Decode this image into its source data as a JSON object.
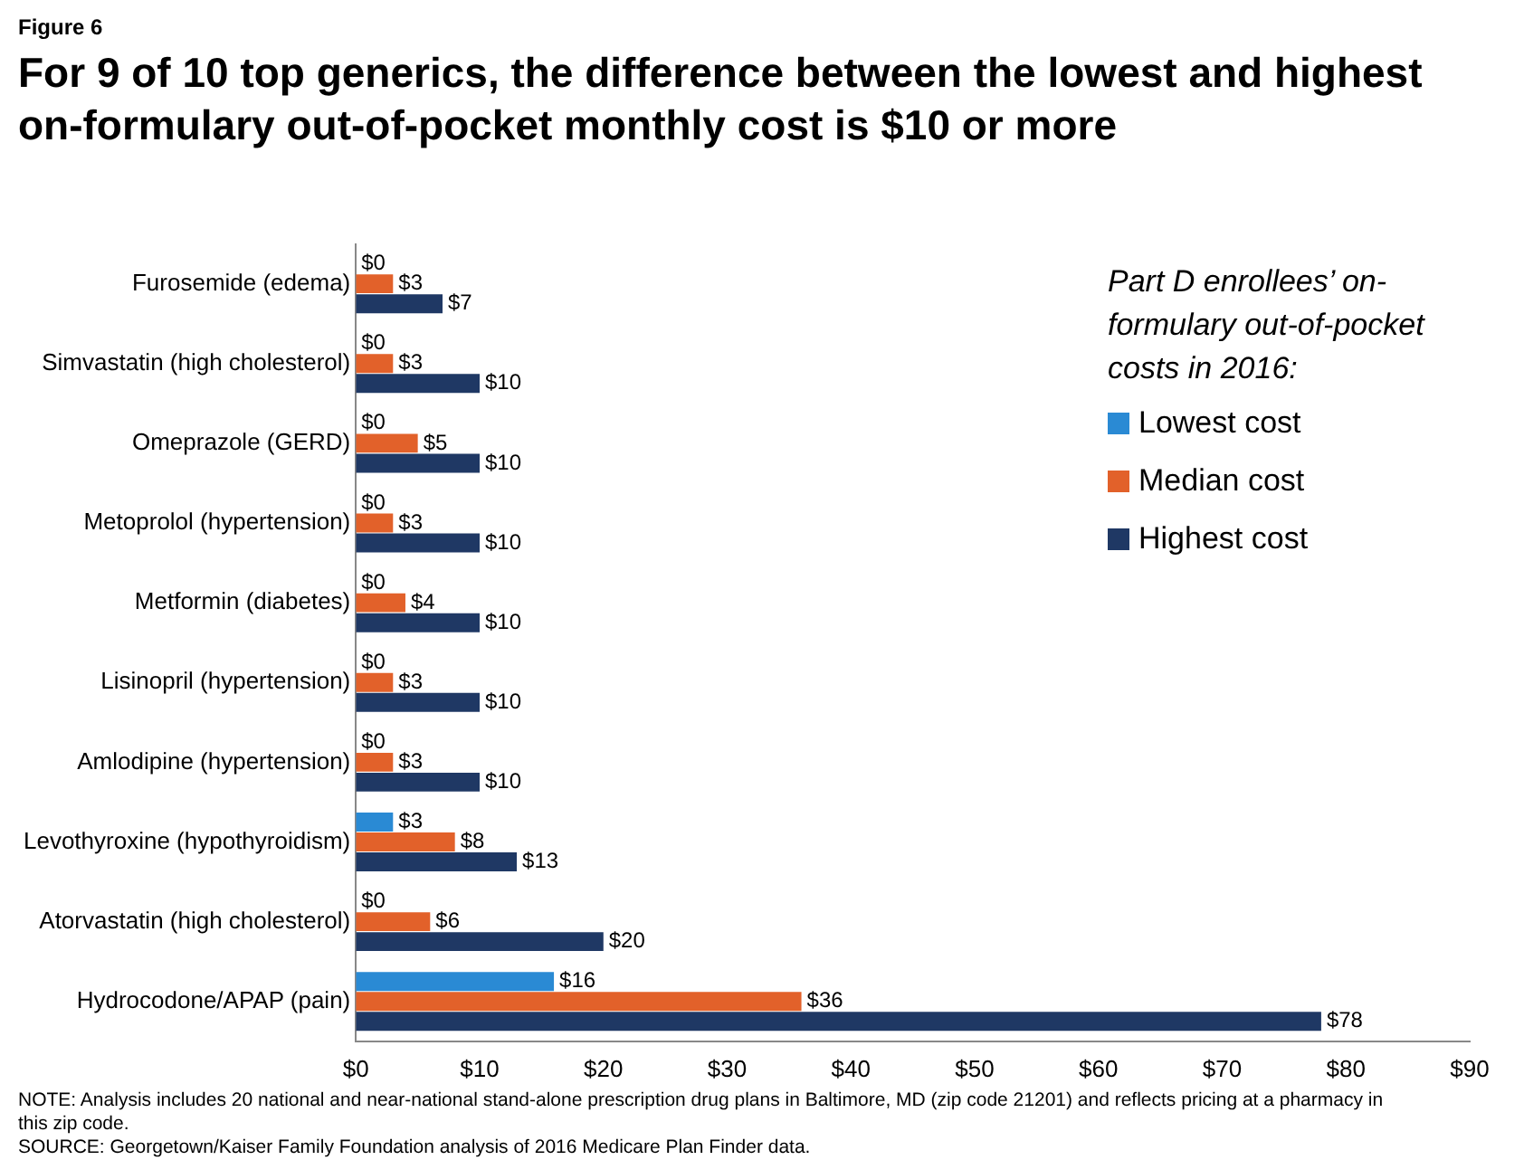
{
  "chart_data": {
    "type": "bar",
    "orientation": "horizontal",
    "title": "For 9 of 10 top generics, the difference between the lowest and highest on-formulary out-of-pocket monthly cost is $10 or more",
    "categories": [
      "Furosemide (edema)",
      "Simvastatin (high cholesterol)",
      "Omeprazole (GERD)",
      "Metoprolol (hypertension)",
      "Metformin (diabetes)",
      "Lisinopril (hypertension)",
      "Amlodipine (hypertension)",
      "Levothyroxine (hypothyroidism)",
      "Atorvastatin (high cholesterol)",
      "Hydrocodone/APAP (pain)"
    ],
    "series": [
      {
        "name": "Lowest cost",
        "color": "#2a8ad4",
        "values": [
          0,
          0,
          0,
          0,
          0,
          0,
          0,
          3,
          0,
          16
        ],
        "value_labels": [
          "$0",
          "$0",
          "$0",
          "$0",
          "$0",
          "$0",
          "$0",
          "$3",
          "$0",
          "$16"
        ]
      },
      {
        "name": "Median cost",
        "color": "#e2612a",
        "values": [
          3,
          3,
          5,
          3,
          4,
          3,
          3,
          8,
          6,
          36
        ],
        "value_labels": [
          "$3",
          "$3",
          "$5",
          "$3",
          "$4",
          "$3",
          "$3",
          "$8",
          "$6",
          "$36"
        ]
      },
      {
        "name": "Highest cost",
        "color": "#1f3864",
        "values": [
          7,
          10,
          10,
          10,
          10,
          10,
          10,
          13,
          20,
          78
        ],
        "value_labels": [
          "$7",
          "$10",
          "$10",
          "$10",
          "$10",
          "$10",
          "$10",
          "$13",
          "$20",
          "$78"
        ]
      }
    ],
    "xlim": [
      0,
      90
    ],
    "xticks": [
      {
        "value": 0,
        "label": "$0"
      },
      {
        "value": 10,
        "label": "$10"
      },
      {
        "value": 20,
        "label": "$20"
      },
      {
        "value": 30,
        "label": "$30"
      },
      {
        "value": 40,
        "label": "$40"
      },
      {
        "value": 50,
        "label": "$50"
      },
      {
        "value": 60,
        "label": "$60"
      },
      {
        "value": 70,
        "label": "$70"
      },
      {
        "value": 80,
        "label": "$80"
      },
      {
        "value": 90,
        "label": "$90"
      }
    ],
    "grid": false,
    "legend": "top right",
    "legend_title": "Part D enrollees’ on-formulary out-of-pocket costs in 2016:",
    "annotations": [
      "Figure 6",
      "NOTE: Analysis includes 20 national and near-national stand-alone prescription drug plans in Baltimore, MD (zip code 21201) and reflects pricing at a pharmacy in this zip code.",
      "SOURCE: Georgetown/Kaiser Family Foundation analysis of 2016 Medicare Plan Finder data."
    ]
  }
}
